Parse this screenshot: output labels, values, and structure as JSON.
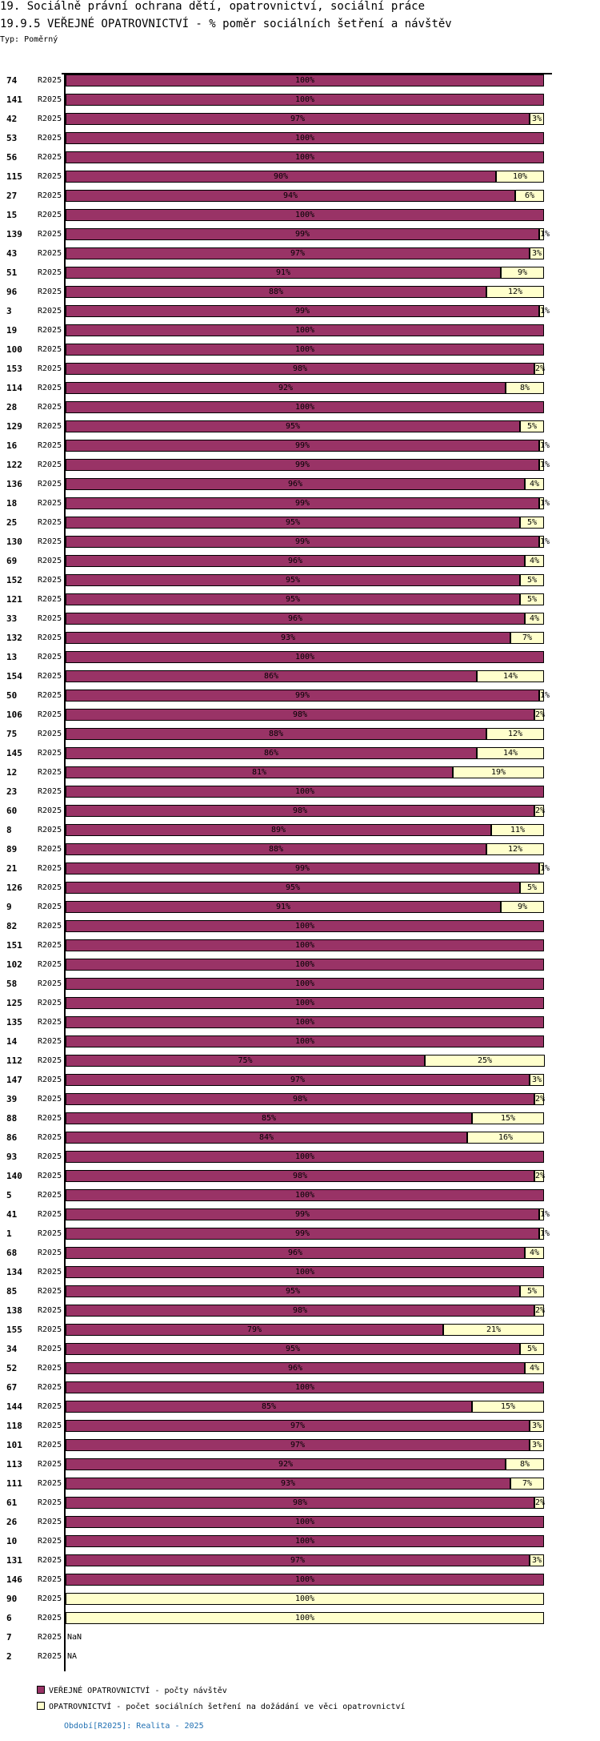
{
  "header": {
    "title": "19. Sociálně právní ochrana dětí, opatrovnictví, sociální práce",
    "subtitle": "19.9.5 VEŘEJNÉ OPATROVNICTVÍ - % poměr sociálních šetření a návštěv",
    "type": "Typ: Poměrný"
  },
  "chart_data": {
    "type": "bar",
    "stacked": "percent",
    "orientation": "horizontal",
    "title": "19.9.5 VEŘEJNÉ OPATROVNICTVÍ - % poměr sociálních šetření a návštěv",
    "xlim": [
      0,
      100
    ],
    "period": "R2025",
    "categories": [
      "74",
      "141",
      "42",
      "53",
      "56",
      "115",
      "27",
      "15",
      "139",
      "43",
      "51",
      "96",
      "3",
      "19",
      "100",
      "153",
      "114",
      "28",
      "129",
      "16",
      "122",
      "136",
      "18",
      "25",
      "130",
      "69",
      "152",
      "121",
      "33",
      "132",
      "13",
      "154",
      "50",
      "106",
      "75",
      "145",
      "12",
      "23",
      "60",
      "8",
      "89",
      "21",
      "126",
      "9",
      "82",
      "151",
      "102",
      "58",
      "125",
      "135",
      "14",
      "112",
      "147",
      "39",
      "88",
      "86",
      "93",
      "140",
      "5",
      "41",
      "1",
      "68",
      "134",
      "85",
      "138",
      "155",
      "34",
      "52",
      "67",
      "144",
      "118",
      "101",
      "113",
      "111",
      "61",
      "26",
      "10",
      "131",
      "146",
      "90",
      "6",
      "7",
      "2"
    ],
    "series": [
      {
        "name": "VEŘEJNÉ OPATROVNICTVÍ - počty návštěv",
        "color": "#993366",
        "values": [
          100,
          100,
          97,
          100,
          100,
          90,
          94,
          100,
          99,
          97,
          91,
          88,
          99,
          100,
          100,
          98,
          92,
          100,
          95,
          99,
          99,
          96,
          99,
          95,
          99,
          96,
          95,
          95,
          96,
          93,
          100,
          86,
          99,
          98,
          88,
          86,
          81,
          100,
          98,
          89,
          88,
          99,
          95,
          91,
          100,
          100,
          100,
          100,
          100,
          100,
          100,
          75,
          97,
          98,
          85,
          84,
          100,
          98,
          100,
          99,
          99,
          96,
          100,
          95,
          98,
          79,
          95,
          96,
          100,
          85,
          97,
          97,
          92,
          93,
          98,
          100,
          100,
          97,
          100,
          0,
          0,
          null,
          null
        ]
      },
      {
        "name": "OPATROVNICTVÍ - počet sociálních šetření na dožádání ve věci opatrovnictví",
        "color": "#ffffcc",
        "values": [
          0,
          0,
          3,
          0,
          0,
          10,
          6,
          0,
          1,
          3,
          9,
          12,
          1,
          0,
          0,
          2,
          8,
          0,
          5,
          1,
          1,
          4,
          1,
          5,
          1,
          4,
          5,
          5,
          4,
          7,
          0,
          14,
          1,
          2,
          12,
          14,
          19,
          0,
          2,
          11,
          12,
          1,
          5,
          9,
          0,
          0,
          0,
          0,
          0,
          0,
          0,
          25,
          3,
          2,
          15,
          16,
          0,
          2,
          0,
          1,
          1,
          4,
          0,
          5,
          2,
          21,
          5,
          4,
          0,
          15,
          3,
          3,
          8,
          7,
          2,
          0,
          0,
          3,
          0,
          100,
          100,
          null,
          null
        ]
      }
    ],
    "missing_labels": {
      "7": "NaN",
      "2": "NA"
    }
  },
  "legend": [
    "VEŘEJNÉ OPATROVNICTVÍ - počty návštěv",
    "OPATROVNICTVÍ - počet sociálních šetření na dožádání ve věci opatrovnictví"
  ],
  "footer": "Období[R2025]: Realita - 2025"
}
